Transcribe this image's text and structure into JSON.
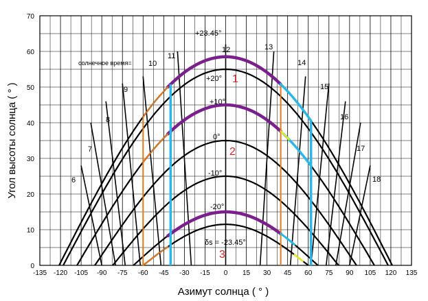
{
  "chart_data": {
    "type": "line",
    "title": "",
    "xlabel": "Азимут солнца ( ° )",
    "ylabel": "Угол высоты солнца ( ° )",
    "xlim": [
      -135,
      135
    ],
    "ylim": [
      0,
      70
    ],
    "x_ticks": [
      "-135",
      "-120",
      "-105",
      "-90",
      "-75",
      "-60",
      "-45",
      "-30",
      "-15",
      "0",
      "15",
      "30",
      "45",
      "60",
      "75",
      "90",
      "105",
      "120",
      "135"
    ],
    "y_ticks": [
      "0",
      "10",
      "20",
      "30",
      "40",
      "50",
      "60",
      "70"
    ],
    "grid": true,
    "declination_labels": [
      "+23.45°",
      "+20°",
      "+10°",
      "0°",
      "-10°",
      "-20°"
    ],
    "declination_label_bottom": "δs = -23.45°",
    "hour_label_prefix": "солнечное время=",
    "hour_labels": [
      "6",
      "7",
      "8",
      "9",
      "10",
      "11",
      "12",
      "13",
      "14",
      "15",
      "16",
      "17",
      "18"
    ],
    "zone_labels": [
      "1",
      "2",
      "3"
    ],
    "series": [
      {
        "peak": 58.5,
        "xend": 121
      },
      {
        "peak": 55.0,
        "xend": 118
      },
      {
        "peak": 45.0,
        "xend": 108
      },
      {
        "peak": 35.0,
        "xend": 95
      },
      {
        "peak": 25.0,
        "xend": 82
      },
      {
        "peak": 15.0,
        "xend": 67
      },
      {
        "peak": 11.5,
        "xend": 60
      }
    ],
    "hour_lines": [
      {
        "label": "6",
        "points": [
          [
            -90,
            0
          ],
          [
            -105,
            28
          ]
        ]
      },
      {
        "label": "7",
        "points": [
          [
            -80,
            0
          ],
          [
            -98,
            40
          ]
        ]
      },
      {
        "label": "8",
        "points": [
          [
            -73,
            0
          ],
          [
            -87,
            46
          ]
        ]
      },
      {
        "label": "9",
        "points": [
          [
            -62,
            0
          ],
          [
            -75,
            51
          ]
        ]
      },
      {
        "label": "10",
        "points": [
          [
            -47,
            0
          ],
          [
            -60,
            53
          ]
        ]
      },
      {
        "label": "11",
        "points": [
          [
            -25,
            0
          ],
          [
            -35,
            60
          ]
        ]
      },
      {
        "label": "12",
        "points": [
          [
            0,
            0
          ],
          [
            0,
            62
          ]
        ]
      },
      {
        "label": "13",
        "points": [
          [
            25,
            0
          ],
          [
            35,
            60
          ]
        ]
      },
      {
        "label": "14",
        "points": [
          [
            47,
            0
          ],
          [
            58,
            53
          ]
        ]
      },
      {
        "label": "15",
        "points": [
          [
            62,
            0
          ],
          [
            75,
            51
          ]
        ]
      },
      {
        "label": "16",
        "points": [
          [
            73,
            0
          ],
          [
            87,
            46
          ]
        ]
      },
      {
        "label": "17",
        "points": [
          [
            80,
            0
          ],
          [
            98,
            40
          ]
        ]
      },
      {
        "label": "18",
        "points": [
          [
            90,
            0
          ],
          [
            105,
            28
          ]
        ]
      }
    ],
    "colors": {
      "purple": "#7a1f8c",
      "orange": "#e07a1e",
      "cyan": "#2bb6e8",
      "yellow": "#e8e81e",
      "red": "#e02020",
      "black": "#000000"
    }
  }
}
